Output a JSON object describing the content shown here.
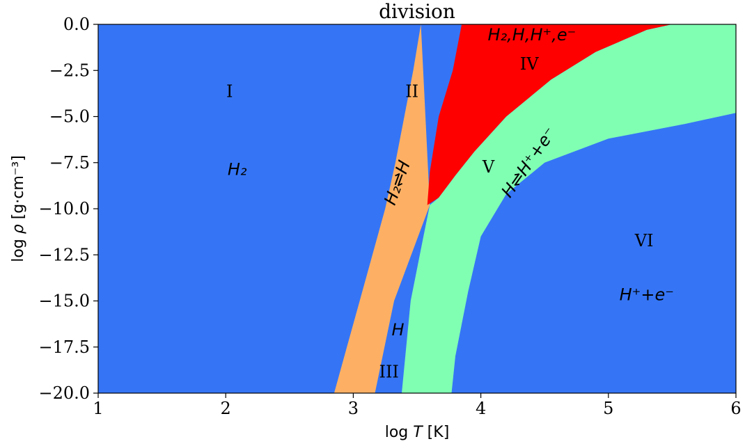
{
  "chart_data": {
    "type": "area",
    "title": "division",
    "xlabel": "log T [K]",
    "ylabel": "log ρ [g·cm⁻³]",
    "xlim": [
      1,
      6
    ],
    "ylim": [
      -20,
      0
    ],
    "xticks": [
      "1",
      "2",
      "3",
      "4",
      "5",
      "6"
    ],
    "yticks": [
      "0.0",
      "−2.5",
      "−5.0",
      "−7.5",
      "−10.0",
      "−12.5",
      "−15.0",
      "−17.5",
      "−20.0"
    ],
    "background_color": "#3575f5",
    "regions": [
      {
        "id": "II",
        "color": "#fdb064",
        "left_boundary": [
          [
            2.85,
            -20
          ],
          [
            2.95,
            -17.5
          ],
          [
            3.05,
            -15
          ],
          [
            3.15,
            -12.5
          ],
          [
            3.25,
            -10
          ],
          [
            3.33,
            -7.5
          ],
          [
            3.4,
            -5
          ],
          [
            3.47,
            -2.5
          ],
          [
            3.53,
            0
          ]
        ],
        "right_boundary": [
          [
            3.53,
            0
          ],
          [
            3.6,
            -9.8
          ],
          [
            3.32,
            -15
          ],
          [
            3.17,
            -20
          ]
        ]
      },
      {
        "id": "IV",
        "color": "#ff0000",
        "points": [
          [
            3.58,
            -9.8
          ],
          [
            3.6,
            -8
          ],
          [
            3.67,
            -5
          ],
          [
            3.78,
            -2.5
          ],
          [
            3.85,
            0
          ],
          [
            5.5,
            0
          ],
          [
            5.3,
            -0.3
          ],
          [
            4.9,
            -1.5
          ],
          [
            4.55,
            -3
          ],
          [
            4.2,
            -5
          ],
          [
            3.95,
            -6.9
          ],
          [
            3.8,
            -8.2
          ],
          [
            3.67,
            -9.4
          ]
        ]
      },
      {
        "id": "V",
        "color": "#80ffb3",
        "points": [
          [
            3.38,
            -20
          ],
          [
            3.45,
            -15
          ],
          [
            3.55,
            -11.5
          ],
          [
            3.6,
            -9.8
          ],
          [
            3.67,
            -9.4
          ],
          [
            3.8,
            -8.2
          ],
          [
            3.95,
            -6.9
          ],
          [
            4.2,
            -5
          ],
          [
            4.55,
            -3
          ],
          [
            4.9,
            -1.5
          ],
          [
            5.3,
            -0.3
          ],
          [
            5.5,
            0
          ],
          [
            6.0,
            0
          ],
          [
            6.0,
            -4.8
          ],
          [
            5.6,
            -5.4
          ],
          [
            5.0,
            -6.2
          ],
          [
            4.5,
            -7.5
          ],
          [
            4.2,
            -9.2
          ],
          [
            4.0,
            -11.5
          ],
          [
            3.9,
            -14.5
          ],
          [
            3.8,
            -18.0
          ],
          [
            3.77,
            -20
          ]
        ]
      }
    ],
    "annotations": [
      {
        "text": "I",
        "x": 2.03,
        "y": -3.7,
        "style": "roman"
      },
      {
        "text": "II",
        "x": 3.46,
        "y": -3.7,
        "style": "roman"
      },
      {
        "text": "III",
        "x": 3.28,
        "y": -18.9,
        "style": "roman"
      },
      {
        "text": "IV",
        "x": 4.38,
        "y": -2.2,
        "style": "roman"
      },
      {
        "text": "V",
        "x": 4.06,
        "y": -7.8,
        "style": "roman"
      },
      {
        "text": "VI",
        "x": 5.28,
        "y": -11.8,
        "style": "roman"
      },
      {
        "text": "H₂",
        "x": 2.09,
        "y": -7.9,
        "style": "species"
      },
      {
        "text": "H₂⇌H",
        "x": 3.35,
        "y": -8.6,
        "style": "species",
        "rotation": -70
      },
      {
        "text": "H₂,H,H⁺,e⁻",
        "x": 4.4,
        "y": -0.6,
        "style": "species"
      },
      {
        "text": "H⇌H⁺+e⁻",
        "x": 4.38,
        "y": -7.5,
        "style": "species",
        "rotation": -55
      },
      {
        "text": "H",
        "x": 3.35,
        "y": -16.6,
        "style": "species"
      },
      {
        "text": "H⁺+e⁻",
        "x": 5.3,
        "y": -14.7,
        "style": "species"
      }
    ]
  }
}
